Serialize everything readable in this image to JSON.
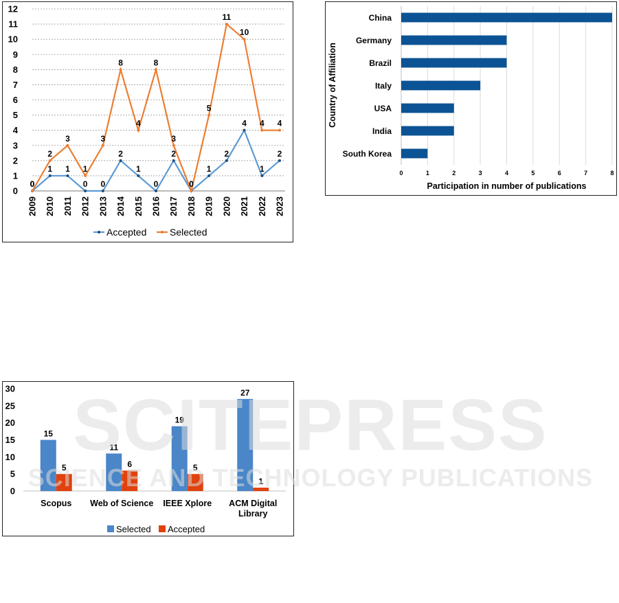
{
  "chart_data": [
    {
      "type": "line",
      "x": [
        "2009",
        "2010",
        "2011",
        "2012",
        "2013",
        "2014",
        "2015",
        "2016",
        "2017",
        "2018",
        "2019",
        "2020",
        "2021",
        "2022",
        "2023"
      ],
      "series": [
        {
          "name": "Accepted",
          "values": [
            0,
            1,
            1,
            0,
            0,
            2,
            1,
            0,
            2,
            0,
            1,
            2,
            4,
            1,
            2
          ],
          "color": "#5B9BD5"
        },
        {
          "name": "Selected",
          "values": [
            0,
            2,
            3,
            1,
            3,
            8,
            4,
            8,
            3,
            0,
            5,
            11,
            10,
            4,
            4
          ],
          "color": "#ED7D31"
        }
      ],
      "yticks": [
        "0",
        "1",
        "2",
        "3",
        "4",
        "5",
        "6",
        "7",
        "8",
        "9",
        "10",
        "11",
        "12"
      ],
      "ylim": [
        0,
        12
      ],
      "grid": true,
      "legend": "bottom"
    },
    {
      "type": "bar",
      "orientation": "horizontal",
      "categories": [
        "China",
        "Germany",
        "Brazil",
        "Italy",
        "USA",
        "India",
        "South Korea"
      ],
      "values": [
        8,
        4,
        4,
        3,
        2,
        2,
        1
      ],
      "color": "#0B5394",
      "xlabel": "Participation in number of publications",
      "ylabel": "Country of Affiliation",
      "xticks": [
        "0",
        "1",
        "2",
        "3",
        "4",
        "5",
        "6",
        "7",
        "8"
      ],
      "xlim": [
        0,
        8
      ],
      "grid": true
    },
    {
      "type": "bar",
      "categories": [
        "Scopus",
        "Web of Science",
        "IEEE Xplore",
        "ACM Digital Library"
      ],
      "category_lines": [
        [
          "Scopus"
        ],
        [
          "Web of Science"
        ],
        [
          "IEEE Xplore"
        ],
        [
          "ACM Digital",
          "Library"
        ]
      ],
      "series": [
        {
          "name": "Selected",
          "values": [
            15,
            11,
            19,
            27
          ],
          "color": "#4A86C8"
        },
        {
          "name": "Accepted",
          "values": [
            5,
            6,
            5,
            1
          ],
          "color": "#E0420E"
        }
      ],
      "yticks": [
        "0",
        "5",
        "10",
        "15",
        "20",
        "25",
        "30"
      ],
      "ylim": [
        0,
        30
      ],
      "legend": "bottom"
    }
  ],
  "watermark": {
    "title": "SCITEPRESS",
    "subtitle": "SCIENCE AND TECHNOLOGY PUBLICATIONS",
    "color": "#dcdcdc"
  }
}
